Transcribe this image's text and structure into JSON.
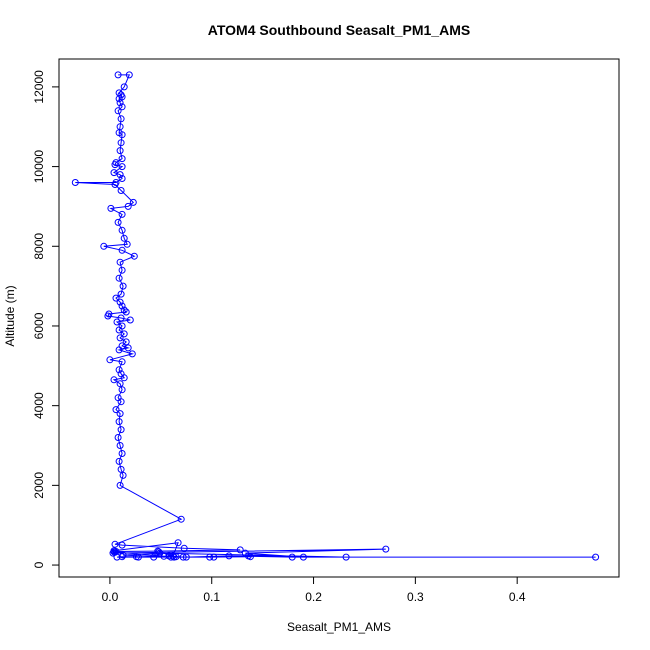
{
  "chart_data": {
    "type": "line",
    "title": "ATOM4 Southbound Seasalt_PM1_AMS",
    "xlabel": "Seasalt_PM1_AMS",
    "ylabel": "Altitude (m)",
    "xlim": [
      -0.05,
      0.5
    ],
    "ylim": [
      -300,
      12700
    ],
    "xticks": [
      0.0,
      0.1,
      0.2,
      0.3,
      0.4
    ],
    "xtick_labels": [
      "0.0",
      "0.1",
      "0.2",
      "0.3",
      "0.4"
    ],
    "yticks": [
      0,
      2000,
      4000,
      6000,
      8000,
      10000,
      12000
    ],
    "ytick_labels": [
      "0",
      "2000",
      "4000",
      "6000",
      "8000",
      "10000",
      "12000"
    ],
    "grid": false,
    "series": [
      {
        "color": "#0000ff",
        "points": [
          [
            0.008,
            12300
          ],
          [
            0.019,
            12300
          ],
          [
            0.014,
            12000
          ],
          [
            0.009,
            11850
          ],
          [
            0.011,
            11800
          ],
          [
            0.012,
            11750
          ],
          [
            0.009,
            11700
          ],
          [
            0.01,
            11600
          ],
          [
            0.012,
            11500
          ],
          [
            0.008,
            11400
          ],
          [
            0.011,
            11200
          ],
          [
            0.01,
            11000
          ],
          [
            0.009,
            10850
          ],
          [
            0.012,
            10800
          ],
          [
            0.011,
            10600
          ],
          [
            0.01,
            10400
          ],
          [
            0.012,
            10200
          ],
          [
            0.006,
            10100
          ],
          [
            0.005,
            10050
          ],
          [
            0.012,
            10000
          ],
          [
            0.004,
            9850
          ],
          [
            0.01,
            9800
          ],
          [
            0.012,
            9700
          ],
          [
            0.006,
            9600
          ],
          [
            -0.034,
            9600
          ],
          [
            0.005,
            9550
          ],
          [
            0.011,
            9400
          ],
          [
            0.023,
            9100
          ],
          [
            0.018,
            9000
          ],
          [
            0.001,
            8950
          ],
          [
            0.012,
            8800
          ],
          [
            0.008,
            8600
          ],
          [
            0.012,
            8400
          ],
          [
            0.014,
            8200
          ],
          [
            0.017,
            8050
          ],
          [
            -0.006,
            8000
          ],
          [
            0.012,
            7900
          ],
          [
            0.024,
            7750
          ],
          [
            0.01,
            7600
          ],
          [
            0.012,
            7400
          ],
          [
            0.009,
            7200
          ],
          [
            0.013,
            7000
          ],
          [
            0.011,
            6800
          ],
          [
            0.006,
            6700
          ],
          [
            0.01,
            6600
          ],
          [
            0.012,
            6500
          ],
          [
            0.014,
            6400
          ],
          [
            0.016,
            6350
          ],
          [
            -0.001,
            6300
          ],
          [
            -0.002,
            6250
          ],
          [
            0.011,
            6200
          ],
          [
            0.02,
            6150
          ],
          [
            0.007,
            6100
          ],
          [
            0.012,
            6000
          ],
          [
            0.009,
            5900
          ],
          [
            0.014,
            5800
          ],
          [
            0.01,
            5700
          ],
          [
            0.016,
            5600
          ],
          [
            0.012,
            5500
          ],
          [
            0.018,
            5450
          ],
          [
            0.009,
            5400
          ],
          [
            0.022,
            5300
          ],
          [
            0.0,
            5150
          ],
          [
            0.012,
            5100
          ],
          [
            0.009,
            4900
          ],
          [
            0.011,
            4800
          ],
          [
            0.014,
            4700
          ],
          [
            0.004,
            4650
          ],
          [
            0.01,
            4550
          ],
          [
            0.012,
            4400
          ],
          [
            0.008,
            4200
          ],
          [
            0.011,
            4100
          ],
          [
            0.006,
            3900
          ],
          [
            0.01,
            3800
          ],
          [
            0.009,
            3600
          ],
          [
            0.011,
            3400
          ],
          [
            0.008,
            3200
          ],
          [
            0.01,
            3000
          ],
          [
            0.012,
            2800
          ],
          [
            0.009,
            2600
          ],
          [
            0.011,
            2400
          ],
          [
            0.013,
            2250
          ],
          [
            0.01,
            2000
          ],
          [
            0.07,
            1150
          ],
          [
            0.005,
            520
          ],
          [
            0.012,
            500
          ],
          [
            0.073,
            420
          ],
          [
            0.128,
            380
          ],
          [
            0.047,
            350
          ],
          [
            0.006,
            340
          ],
          [
            0.005,
            320
          ],
          [
            0.003,
            300
          ],
          [
            0.271,
            400
          ],
          [
            0.133,
            300
          ],
          [
            0.19,
            200
          ],
          [
            0.136,
            230
          ],
          [
            0.102,
            200
          ],
          [
            0.06,
            200
          ],
          [
            0.013,
            250
          ],
          [
            0.049,
            300
          ],
          [
            0.232,
            200
          ],
          [
            0.477,
            200
          ],
          [
            0.179,
            200
          ],
          [
            0.117,
            230
          ],
          [
            0.075,
            200
          ],
          [
            0.063,
            200
          ],
          [
            0.065,
            210
          ],
          [
            0.043,
            200
          ],
          [
            0.028,
            200
          ],
          [
            0.026,
            210
          ],
          [
            0.012,
            210
          ],
          [
            0.007,
            200
          ],
          [
            0.138,
            210
          ],
          [
            0.098,
            200
          ],
          [
            0.072,
            200
          ],
          [
            0.058,
            230
          ],
          [
            0.053,
            220
          ],
          [
            0.004,
            330
          ],
          [
            0.004,
            360
          ],
          [
            0.067,
            560
          ],
          [
            0.062,
            230
          ],
          [
            0.048,
            330
          ]
        ]
      }
    ]
  }
}
